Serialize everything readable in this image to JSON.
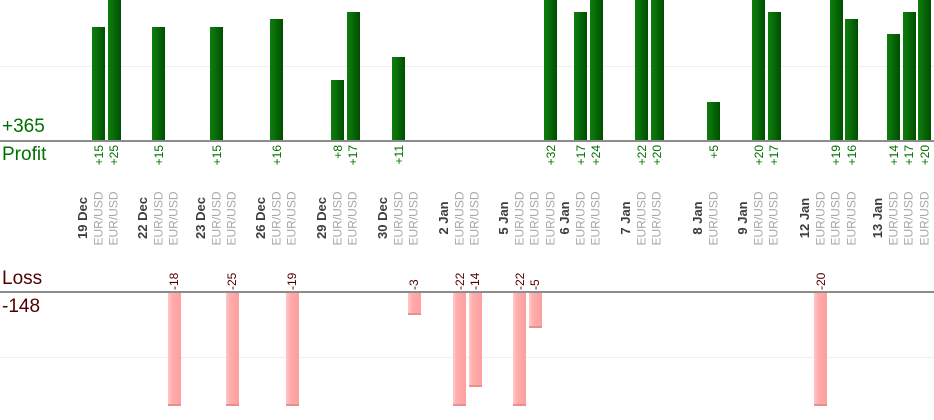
{
  "summary": {
    "profit_total": "+365",
    "profit_label": "Profit",
    "loss_label": "Loss",
    "loss_total": "-148"
  },
  "chart_data": {
    "type": "bar",
    "title": "",
    "orientation": "dual-axis: profits drawn upward from upper baseline, losses drawn downward from lower baseline",
    "legend_position": "none",
    "grid": "faint horizontal gridline at +10 (profit area) and -10 (loss area)",
    "categories": [
      "19 Dec",
      "22 Dec",
      "23 Dec",
      "26 Dec",
      "29 Dec",
      "30 Dec",
      "2 Jan",
      "5 Jan",
      "6 Jan",
      "7 Jan",
      "8 Jan",
      "9 Jan",
      "12 Jan",
      "13 Jan"
    ],
    "groups": [
      {
        "date": "19 Dec",
        "trades": [
          {
            "symbol": "EUR/USD",
            "value": 15,
            "label": "+15"
          },
          {
            "symbol": "EUR/USD",
            "value": 25,
            "label": "+25"
          }
        ]
      },
      {
        "date": "22 Dec",
        "trades": [
          {
            "symbol": "EUR/USD",
            "value": 15,
            "label": "+15"
          },
          {
            "symbol": "EUR/USD",
            "value": -18,
            "label": "-18"
          }
        ]
      },
      {
        "date": "23 Dec",
        "trades": [
          {
            "symbol": "EUR/USD",
            "value": 15,
            "label": "+15"
          },
          {
            "symbol": "EUR/USD",
            "value": -25,
            "label": "-25"
          }
        ]
      },
      {
        "date": "26 Dec",
        "trades": [
          {
            "symbol": "EUR/USD",
            "value": 16,
            "label": "+16"
          },
          {
            "symbol": "EUR/USD",
            "value": -19,
            "label": "-19"
          }
        ]
      },
      {
        "date": "29 Dec",
        "trades": [
          {
            "symbol": "EUR/USD",
            "value": 8,
            "label": "+8"
          },
          {
            "symbol": "EUR/USD",
            "value": 17,
            "label": "+17"
          }
        ]
      },
      {
        "date": "30 Dec",
        "trades": [
          {
            "symbol": "EUR/USD",
            "value": 11,
            "label": "+11"
          },
          {
            "symbol": "EUR/USD",
            "value": -3,
            "label": "-3"
          }
        ]
      },
      {
        "date": "2 Jan",
        "trades": [
          {
            "symbol": "EUR/USD",
            "value": -22,
            "label": "-22"
          },
          {
            "symbol": "EUR/USD",
            "value": -14,
            "label": "-14"
          }
        ]
      },
      {
        "date": "5 Jan",
        "trades": [
          {
            "symbol": "EUR/USD",
            "value": -22,
            "label": "-22"
          },
          {
            "symbol": "EUR/USD",
            "value": -5,
            "label": "-5"
          },
          {
            "symbol": "EUR/USD",
            "value": 32,
            "label": "+32"
          }
        ]
      },
      {
        "date": "6 Jan",
        "trades": [
          {
            "symbol": "EUR/USD",
            "value": 17,
            "label": "+17"
          },
          {
            "symbol": "EUR/USD",
            "value": 24,
            "label": "+24"
          }
        ]
      },
      {
        "date": "7 Jan",
        "trades": [
          {
            "symbol": "EUR/USD",
            "value": 22,
            "label": "+22"
          },
          {
            "symbol": "EUR/USD",
            "value": 20,
            "label": "+20"
          }
        ]
      },
      {
        "date": "8 Jan",
        "trades": [
          {
            "symbol": "EUR/USD",
            "value": 5,
            "label": "+5"
          }
        ]
      },
      {
        "date": "9 Jan",
        "trades": [
          {
            "symbol": "EUR/USD",
            "value": 20,
            "label": "+20"
          },
          {
            "symbol": "EUR/USD",
            "value": 17,
            "label": "+17"
          }
        ]
      },
      {
        "date": "12 Jan",
        "trades": [
          {
            "symbol": "EUR/USD",
            "value": -20,
            "label": "-20"
          },
          {
            "symbol": "EUR/USD",
            "value": 19,
            "label": "+19"
          },
          {
            "symbol": "EUR/USD",
            "value": 16,
            "label": "+16"
          }
        ]
      },
      {
        "date": "13 Jan",
        "trades": [
          {
            "symbol": "EUR/USD",
            "value": 14,
            "label": "+14"
          },
          {
            "symbol": "EUR/USD",
            "value": 17,
            "label": "+17"
          },
          {
            "symbol": "EUR/USD",
            "value": 20,
            "label": "+20"
          }
        ]
      }
    ],
    "totals": {
      "profit": 365,
      "loss": -148
    },
    "colors": {
      "profit_bar_light": "#0d7d0d",
      "profit_bar_dark": "#004e00",
      "profit_text": "#007000",
      "loss_bar": "#ffadad",
      "loss_bar_border": "#e89090",
      "loss_text": "#500000",
      "date_text": "#3d3d3d",
      "symbol_text": "#a8a8a8",
      "baseline": "#8c8c8c",
      "gridline": "#efefef"
    }
  }
}
